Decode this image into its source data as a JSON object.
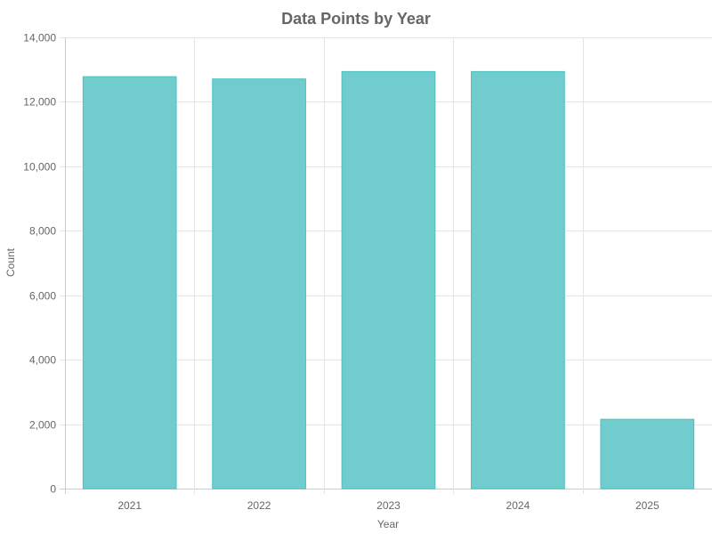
{
  "chart_data": {
    "type": "bar",
    "title": "Data Points by Year",
    "xlabel": "Year",
    "ylabel": "Count",
    "categories": [
      "2021",
      "2022",
      "2023",
      "2024",
      "2025"
    ],
    "values": [
      12780,
      12710,
      12940,
      12940,
      2150
    ],
    "ylim": [
      0,
      14000
    ],
    "yticks": [
      0,
      2000,
      4000,
      6000,
      8000,
      10000,
      12000,
      14000
    ],
    "ytick_labels": [
      "0",
      "2,000",
      "4,000",
      "6,000",
      "8,000",
      "10,000",
      "12,000",
      "14,000"
    ],
    "grid": true,
    "legend": "none",
    "bar_color": "#71CDCD",
    "bar_border_color": "#4BC0C0"
  }
}
